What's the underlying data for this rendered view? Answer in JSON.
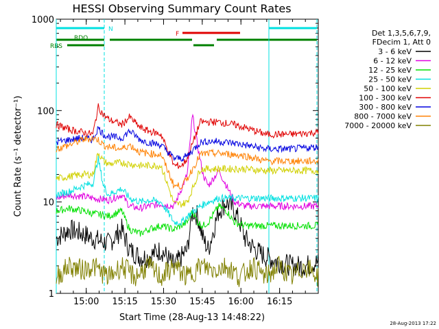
{
  "chart_data": {
    "type": "line",
    "title": "HESSI Observing Summary Count Rates",
    "xlabel": "Start Time (28-Aug-13 14:48:22)",
    "ylabel": "Count Rate (s⁻¹ detector⁻¹)",
    "y_scale": "log",
    "ylim": [
      1,
      1000
    ],
    "xlim": [
      "14:48:22",
      "16:30:00"
    ],
    "x_ticks": [
      "15:00",
      "15:15",
      "15:30",
      "15:45",
      "16:00",
      "16:15"
    ],
    "y_ticks": [
      "1",
      "10",
      "100",
      "1000"
    ],
    "grid": false,
    "legend_position": "right",
    "legend_header": [
      "Det 1,3,5,6,7,9,",
      "FDecim 1, Att 0"
    ],
    "footer_date": "28-Aug-2013 17:22",
    "flag_labels": {
      "N": "N",
      "F": "F",
      "RDO": "RDO",
      "RBS": "RBS"
    },
    "series": [
      {
        "name": "3 - 6 keV",
        "color": "#000000",
        "values": [
          [
            0,
            4
          ],
          [
            5,
            5
          ],
          [
            10,
            4.5
          ],
          [
            14,
            4
          ],
          [
            20,
            3.5
          ],
          [
            25,
            5
          ],
          [
            28,
            3
          ],
          [
            32,
            2.5
          ],
          [
            35,
            2.5
          ],
          [
            40,
            3
          ],
          [
            45,
            2
          ],
          [
            50,
            3
          ],
          [
            52,
            8
          ],
          [
            54,
            7
          ],
          [
            56,
            4
          ],
          [
            58,
            3
          ],
          [
            62,
            8
          ],
          [
            65,
            10
          ],
          [
            68,
            8
          ],
          [
            70,
            6
          ],
          [
            72,
            4
          ],
          [
            76,
            3
          ],
          [
            80,
            2.5
          ],
          [
            85,
            2.2
          ],
          [
            90,
            2
          ],
          [
            95,
            2
          ],
          [
            100,
            2.2
          ]
        ]
      },
      {
        "name": "6 - 12 keV",
        "color": "#e000e0",
        "values": [
          [
            0,
            11
          ],
          [
            5,
            12
          ],
          [
            10,
            11.5
          ],
          [
            14,
            11
          ],
          [
            20,
            10.5
          ],
          [
            25,
            12
          ],
          [
            28,
            9
          ],
          [
            32,
            8.5
          ],
          [
            35,
            9
          ],
          [
            40,
            9.5
          ],
          [
            45,
            9
          ],
          [
            50,
            20
          ],
          [
            52,
            90
          ],
          [
            54,
            40
          ],
          [
            56,
            20
          ],
          [
            58,
            15
          ],
          [
            62,
            22
          ],
          [
            65,
            15
          ],
          [
            68,
            10
          ],
          [
            72,
            9
          ],
          [
            80,
            9
          ],
          [
            90,
            9
          ],
          [
            100,
            9
          ]
        ]
      },
      {
        "name": "12 - 25 keV",
        "color": "#00e000",
        "values": [
          [
            0,
            8
          ],
          [
            5,
            8.5
          ],
          [
            10,
            8
          ],
          [
            14,
            7.5
          ],
          [
            20,
            7
          ],
          [
            25,
            8
          ],
          [
            28,
            5
          ],
          [
            32,
            4.5
          ],
          [
            35,
            5
          ],
          [
            40,
            5.5
          ],
          [
            45,
            5
          ],
          [
            50,
            6
          ],
          [
            52,
            8
          ],
          [
            54,
            6
          ],
          [
            56,
            5.5
          ],
          [
            58,
            6
          ],
          [
            62,
            9
          ],
          [
            65,
            8
          ],
          [
            68,
            6
          ],
          [
            72,
            5.5
          ],
          [
            80,
            5.5
          ],
          [
            90,
            5.5
          ],
          [
            100,
            5.5
          ]
        ]
      },
      {
        "name": "25 - 50 keV",
        "color": "#00e0e0",
        "values": [
          [
            0,
            12
          ],
          [
            5,
            13
          ],
          [
            10,
            15
          ],
          [
            14,
            16
          ],
          [
            16,
            30
          ],
          [
            18,
            15
          ],
          [
            20,
            12
          ],
          [
            25,
            14
          ],
          [
            28,
            11
          ],
          [
            32,
            10
          ],
          [
            35,
            10.5
          ],
          [
            40,
            10
          ],
          [
            45,
            6
          ],
          [
            48,
            6
          ],
          [
            50,
            7
          ],
          [
            55,
            9
          ],
          [
            58,
            10
          ],
          [
            62,
            11
          ],
          [
            68,
            11
          ],
          [
            72,
            11
          ],
          [
            80,
            11
          ],
          [
            90,
            11
          ],
          [
            100,
            11
          ]
        ]
      },
      {
        "name": "50 - 100 keV",
        "color": "#d0d000",
        "values": [
          [
            0,
            18
          ],
          [
            5,
            19
          ],
          [
            10,
            20
          ],
          [
            14,
            20
          ],
          [
            16,
            35
          ],
          [
            18,
            28
          ],
          [
            20,
            26
          ],
          [
            25,
            27
          ],
          [
            28,
            26
          ],
          [
            32,
            25
          ],
          [
            35,
            25
          ],
          [
            40,
            25
          ],
          [
            45,
            9.5
          ],
          [
            48,
            9.5
          ],
          [
            50,
            10
          ],
          [
            55,
            23
          ],
          [
            58,
            23
          ],
          [
            62,
            23
          ],
          [
            68,
            23
          ],
          [
            72,
            23
          ],
          [
            80,
            22
          ],
          [
            90,
            22
          ],
          [
            100,
            22
          ]
        ]
      },
      {
        "name": "100 - 300 keV",
        "color": "#e00000",
        "values": [
          [
            0,
            70
          ],
          [
            5,
            62
          ],
          [
            10,
            58
          ],
          [
            14,
            55
          ],
          [
            16,
            110
          ],
          [
            18,
            90
          ],
          [
            20,
            80
          ],
          [
            25,
            70
          ],
          [
            28,
            85
          ],
          [
            32,
            65
          ],
          [
            35,
            60
          ],
          [
            40,
            55
          ],
          [
            45,
            25
          ],
          [
            48,
            25
          ],
          [
            50,
            30
          ],
          [
            55,
            75
          ],
          [
            58,
            75
          ],
          [
            62,
            75
          ],
          [
            68,
            70
          ],
          [
            72,
            65
          ],
          [
            80,
            55
          ],
          [
            90,
            55
          ],
          [
            100,
            58
          ]
        ]
      },
      {
        "name": "300 - 800 keV",
        "color": "#0000e0",
        "values": [
          [
            0,
            45
          ],
          [
            5,
            48
          ],
          [
            10,
            50
          ],
          [
            14,
            48
          ],
          [
            16,
            65
          ],
          [
            18,
            55
          ],
          [
            20,
            52
          ],
          [
            25,
            50
          ],
          [
            28,
            60
          ],
          [
            32,
            48
          ],
          [
            35,
            45
          ],
          [
            40,
            42
          ],
          [
            45,
            30
          ],
          [
            48,
            30
          ],
          [
            50,
            32
          ],
          [
            55,
            45
          ],
          [
            58,
            46
          ],
          [
            62,
            46
          ],
          [
            68,
            44
          ],
          [
            72,
            42
          ],
          [
            80,
            38
          ],
          [
            90,
            38
          ],
          [
            100,
            40
          ]
        ]
      },
      {
        "name": "800 - 7000 keV",
        "color": "#ff8000",
        "values": [
          [
            0,
            38
          ],
          [
            5,
            42
          ],
          [
            10,
            48
          ],
          [
            14,
            50
          ],
          [
            16,
            48
          ],
          [
            18,
            42
          ],
          [
            20,
            40
          ],
          [
            25,
            38
          ],
          [
            28,
            42
          ],
          [
            32,
            35
          ],
          [
            35,
            34
          ],
          [
            40,
            33
          ],
          [
            45,
            15
          ],
          [
            48,
            15
          ],
          [
            50,
            18
          ],
          [
            55,
            33
          ],
          [
            58,
            34
          ],
          [
            62,
            34
          ],
          [
            68,
            33
          ],
          [
            72,
            32
          ],
          [
            80,
            28
          ],
          [
            90,
            28
          ],
          [
            100,
            28
          ]
        ]
      },
      {
        "name": "7000 - 20000 keV",
        "color": "#808000",
        "values": [
          [
            0,
            1.5
          ],
          [
            5,
            2
          ],
          [
            10,
            1.8
          ],
          [
            14,
            2
          ],
          [
            20,
            1.5
          ],
          [
            25,
            2
          ],
          [
            30,
            1.5
          ],
          [
            35,
            2
          ],
          [
            40,
            1.5
          ],
          [
            45,
            2
          ],
          [
            50,
            1.5
          ],
          [
            55,
            2
          ],
          [
            60,
            1.8
          ],
          [
            65,
            2
          ],
          [
            70,
            1.5
          ],
          [
            75,
            2
          ],
          [
            80,
            1.5
          ],
          [
            85,
            2
          ],
          [
            90,
            1.5
          ],
          [
            95,
            2
          ],
          [
            100,
            1.5
          ]
        ]
      }
    ]
  }
}
